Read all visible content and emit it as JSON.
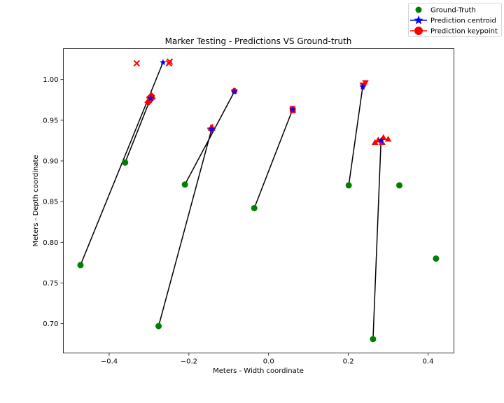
{
  "chart_data": {
    "type": "scatter",
    "title": "Marker Testing - Predictions VS Ground-truth",
    "xlabel": "Meters - Width coordinate",
    "ylabel": "Meters - Depth coordinate",
    "xlim": [
      -0.515,
      0.465
    ],
    "ylim": [
      0.664,
      1.038
    ],
    "xticks": [
      -0.4,
      -0.2,
      0.0,
      0.2,
      0.4
    ],
    "xtick_labels": [
      "−0.4",
      "−0.2",
      "0.0",
      "0.2",
      "0.4"
    ],
    "yticks": [
      0.7,
      0.75,
      0.8,
      0.85,
      0.9,
      0.95,
      1.0
    ],
    "ytick_labels": [
      "0.70",
      "0.75",
      "0.80",
      "0.85",
      "0.90",
      "0.95",
      "1.00"
    ],
    "grid": false,
    "legend": {
      "placement": "top-right",
      "entries": [
        "Ground-Truth",
        "Prediction centroid",
        "Prediction keypoint"
      ]
    },
    "colors": {
      "ground_truth": "#008000",
      "centroid": "#0000ff",
      "keypoint": "#ff0000",
      "line": "#000000"
    },
    "series": [
      {
        "name": "Ground-Truth",
        "marker": "circle",
        "points": [
          [
            -0.472,
            0.772
          ],
          [
            -0.36,
            0.898
          ],
          [
            -0.276,
            0.697
          ],
          [
            -0.21,
            0.871
          ],
          [
            -0.036,
            0.842
          ],
          [
            0.201,
            0.87
          ],
          [
            0.262,
            0.681
          ],
          [
            0.328,
            0.87
          ],
          [
            0.42,
            0.78
          ]
        ]
      },
      {
        "name": "Prediction centroid",
        "marker": "star",
        "points": [
          [
            -0.265,
            1.021
          ],
          [
            -0.296,
            0.977
          ],
          [
            -0.143,
            0.939
          ],
          [
            -0.086,
            0.985
          ],
          [
            0.06,
            0.963
          ],
          [
            0.236,
            0.991
          ],
          [
            0.282,
            0.925
          ]
        ]
      },
      {
        "name": "Prediction keypoint",
        "groups": [
          {
            "marker": "x",
            "points": [
              [
                -0.331,
                1.02
              ],
              [
                -0.248,
                1.022
              ],
              [
                -0.25,
                1.02
              ]
            ]
          },
          {
            "marker": "diamond",
            "points": [
              [
                -0.302,
                0.972
              ],
              [
                -0.298,
                0.978
              ],
              [
                -0.294,
                0.98
              ],
              [
                -0.293,
                0.977
              ],
              [
                -0.297,
                0.975
              ]
            ]
          },
          {
            "marker": "plus",
            "points": [
              [
                -0.145,
                0.94
              ],
              [
                -0.141,
                0.941
              ],
              [
                -0.143,
                0.938
              ]
            ]
          },
          {
            "marker": "pentagon",
            "points": [
              [
                -0.086,
                0.986
              ]
            ]
          },
          {
            "marker": "square",
            "points": [
              [
                0.06,
                0.964
              ],
              [
                0.061,
                0.962
              ]
            ]
          },
          {
            "marker": "triangle-down",
            "points": [
              [
                0.243,
                0.996
              ],
              [
                0.236,
                0.993
              ],
              [
                0.238,
                0.991
              ]
            ]
          },
          {
            "marker": "triangle-up",
            "points": [
              [
                0.267,
                0.923
              ],
              [
                0.275,
                0.926
              ],
              [
                0.285,
                0.923
              ],
              [
                0.288,
                0.929
              ],
              [
                0.3,
                0.927
              ]
            ]
          }
        ]
      }
    ],
    "connectors": [
      [
        [
          -0.472,
          0.772
        ],
        [
          -0.265,
          1.021
        ]
      ],
      [
        [
          -0.36,
          0.898
        ],
        [
          -0.296,
          0.977
        ]
      ],
      [
        [
          -0.276,
          0.697
        ],
        [
          -0.143,
          0.939
        ]
      ],
      [
        [
          -0.21,
          0.871
        ],
        [
          -0.086,
          0.985
        ]
      ],
      [
        [
          -0.036,
          0.842
        ],
        [
          0.06,
          0.963
        ]
      ],
      [
        [
          0.201,
          0.87
        ],
        [
          0.236,
          0.991
        ]
      ],
      [
        [
          0.262,
          0.681
        ],
        [
          0.282,
          0.925
        ]
      ]
    ]
  }
}
